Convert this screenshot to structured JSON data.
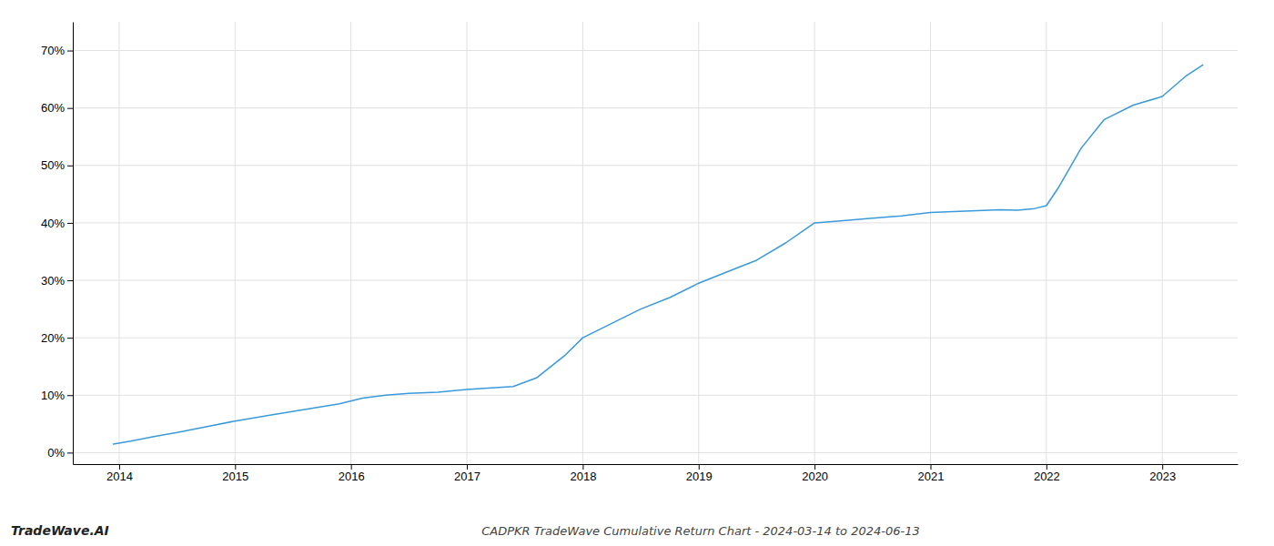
{
  "chart_data": {
    "type": "line",
    "title": "CADPKR TradeWave Cumulative Return Chart - 2024-03-14 to 2024-06-13",
    "annotations": [
      "TradeWave.AI"
    ],
    "color": "#3a9ad9",
    "x": [
      2013.95,
      2014.1,
      2014.3,
      2014.5,
      2014.75,
      2015.0,
      2015.3,
      2015.6,
      2015.9,
      2016.1,
      2016.3,
      2016.5,
      2016.75,
      2017.0,
      2017.15,
      2017.4,
      2017.6,
      2017.85,
      2018.0,
      2018.25,
      2018.5,
      2018.75,
      2019.0,
      2019.25,
      2019.5,
      2019.75,
      2020.0,
      2020.2,
      2020.5,
      2020.75,
      2021.0,
      2021.25,
      2021.5,
      2021.6,
      2021.75,
      2021.9,
      2022.0,
      2022.1,
      2022.3,
      2022.5,
      2022.75,
      2023.0,
      2023.2,
      2023.35
    ],
    "values": [
      1.5,
      2.0,
      2.8,
      3.5,
      4.5,
      5.5,
      6.5,
      7.5,
      8.5,
      9.5,
      10.0,
      10.3,
      10.5,
      11.0,
      11.2,
      11.5,
      13.0,
      17.0,
      20.0,
      22.5,
      25.0,
      27.0,
      29.5,
      31.5,
      33.5,
      36.5,
      40.0,
      40.3,
      40.8,
      41.2,
      41.8,
      42.0,
      42.2,
      42.3,
      42.2,
      42.5,
      43.0,
      46.0,
      53.0,
      58.0,
      60.5,
      62.0,
      65.5,
      67.5
    ],
    "xlim": [
      2013.6,
      2023.65
    ],
    "ylim": [
      -2,
      75
    ],
    "xticks": [
      2014,
      2015,
      2016,
      2017,
      2018,
      2019,
      2020,
      2021,
      2022,
      2023
    ],
    "yticks": [
      {
        "value": 0,
        "label": "0%"
      },
      {
        "value": 10,
        "label": "10%"
      },
      {
        "value": 20,
        "label": "20%"
      },
      {
        "value": 30,
        "label": "30%"
      },
      {
        "value": 40,
        "label": "40%"
      },
      {
        "value": 50,
        "label": "50%"
      },
      {
        "value": 60,
        "label": "60%"
      },
      {
        "value": 70,
        "label": "70%"
      }
    ],
    "grid": true
  }
}
